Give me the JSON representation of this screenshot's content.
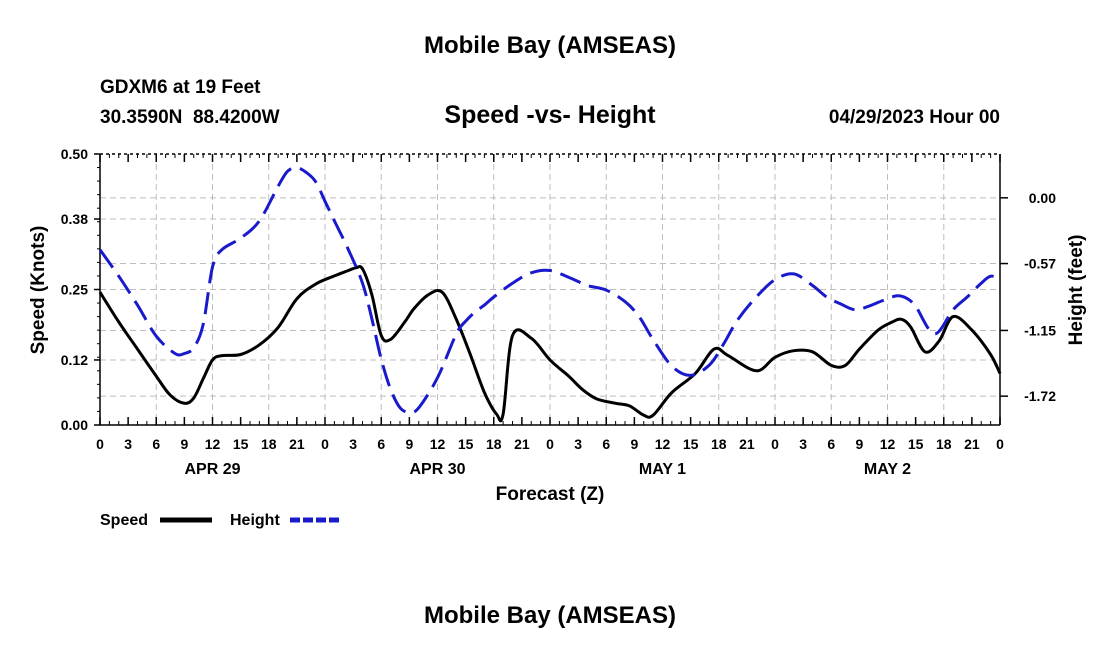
{
  "header": {
    "title_top": "Mobile Bay (AMSEAS)",
    "station_line": "GDXM6 at 19 Feet",
    "coords_line": "30.3590N  88.4200W",
    "chart_title": "Speed -vs- Height",
    "date_line": "04/29/2023 Hour 00",
    "title_bottom": "Mobile Bay (AMSEAS)"
  },
  "colors": {
    "speed": "#000000",
    "height": "#1a1acd",
    "grid": "#bdbdbd"
  },
  "chart_data": {
    "type": "line",
    "title": "Speed -vs- Height",
    "xlabel": "Forecast (Z)",
    "ylabel": "Speed (Knots)",
    "y2label": "Height (feet)",
    "x_unit": "hours from 04/29/2023 00Z",
    "xlim": [
      0,
      96
    ],
    "ylim": [
      0,
      0.5
    ],
    "y2lim": [
      -1.97,
      0.38
    ],
    "grid": true,
    "legend_position": "bottom-left",
    "x_tick_values": [
      0,
      3,
      6,
      9,
      12,
      15,
      18,
      21,
      24,
      27,
      30,
      33,
      36,
      39,
      42,
      45,
      48,
      51,
      54,
      57,
      60,
      63,
      66,
      69,
      72,
      75,
      78,
      81,
      84,
      87,
      90,
      93,
      96
    ],
    "x_tick_labels": [
      "0",
      "3",
      "6",
      "9",
      "12",
      "15",
      "18",
      "21",
      "0",
      "3",
      "6",
      "9",
      "12",
      "15",
      "18",
      "21",
      "0",
      "3",
      "6",
      "9",
      "12",
      "15",
      "18",
      "21",
      "0",
      "3",
      "6",
      "9",
      "12",
      "15",
      "18",
      "21",
      "0"
    ],
    "y_ticks": [
      "0.00",
      "0.12",
      "0.25",
      "0.38",
      "0.50"
    ],
    "y2_ticks": [
      "0.00",
      "-0.57",
      "-1.15",
      "-1.72"
    ],
    "date_labels": [
      {
        "label": "APR 29",
        "hour": 12
      },
      {
        "label": "APR 30",
        "hour": 36
      },
      {
        "label": "MAY 1",
        "hour": 60
      },
      {
        "label": "MAY 2",
        "hour": 84
      }
    ],
    "series": [
      {
        "name": "Speed",
        "axis": "left",
        "style": "solid",
        "x": [
          0,
          2,
          4,
          6,
          7.5,
          9,
          10,
          11,
          12,
          13,
          15,
          17,
          19,
          21,
          23,
          25,
          26.5,
          27.3,
          28,
          29,
          30,
          31,
          32.5,
          33.5,
          35,
          36.5,
          38,
          39.5,
          41,
          42.3,
          43,
          44,
          46,
          48,
          50,
          51.5,
          53,
          55,
          56.5,
          58,
          59,
          61,
          63.5,
          65.5,
          67,
          70,
          72,
          74,
          76,
          78,
          79.5,
          81,
          83,
          84.5,
          85.5,
          86.5,
          88,
          89.5,
          91,
          93,
          95,
          96
        ],
        "values": [
          0.245,
          0.19,
          0.14,
          0.09,
          0.055,
          0.04,
          0.05,
          0.085,
          0.12,
          0.128,
          0.13,
          0.148,
          0.18,
          0.233,
          0.26,
          0.275,
          0.285,
          0.29,
          0.288,
          0.24,
          0.165,
          0.158,
          0.19,
          0.215,
          0.24,
          0.245,
          0.195,
          0.13,
          0.06,
          0.02,
          0.02,
          0.165,
          0.16,
          0.12,
          0.09,
          0.065,
          0.048,
          0.04,
          0.035,
          0.018,
          0.018,
          0.06,
          0.095,
          0.14,
          0.128,
          0.1,
          0.125,
          0.137,
          0.135,
          0.11,
          0.11,
          0.14,
          0.175,
          0.19,
          0.195,
          0.18,
          0.135,
          0.155,
          0.2,
          0.175,
          0.13,
          0.095
        ]
      },
      {
        "name": "Height",
        "axis": "right",
        "style": "dashed",
        "x": [
          0,
          2,
          4,
          6,
          8,
          9,
          10,
          11,
          12,
          13,
          15,
          17,
          19,
          20,
          21,
          22,
          23,
          24,
          25,
          26.5,
          28,
          29,
          30,
          31,
          32,
          33,
          34,
          36,
          38,
          39,
          40,
          41,
          42,
          44,
          46,
          48,
          50,
          52,
          54,
          56,
          57.5,
          59,
          61,
          63,
          65,
          66.5,
          68,
          70,
          72,
          74,
          76,
          77.5,
          79,
          80.5,
          82,
          83.5,
          85,
          86,
          87,
          89,
          91,
          92.5,
          94,
          95,
          96
        ],
        "values": [
          -0.45,
          -0.68,
          -0.93,
          -1.2,
          -1.35,
          -1.35,
          -1.3,
          -1.1,
          -0.6,
          -0.45,
          -0.35,
          -0.2,
          0.1,
          0.23,
          0.26,
          0.22,
          0.14,
          -0.03,
          -0.2,
          -0.45,
          -0.74,
          -1.05,
          -1.4,
          -1.66,
          -1.82,
          -1.86,
          -1.82,
          -1.56,
          -1.18,
          -1.07,
          -0.99,
          -0.93,
          -0.86,
          -0.74,
          -0.65,
          -0.63,
          -0.69,
          -0.76,
          -0.8,
          -0.9,
          -1.03,
          -1.23,
          -1.46,
          -1.54,
          -1.45,
          -1.27,
          -1.06,
          -0.86,
          -0.71,
          -0.66,
          -0.76,
          -0.86,
          -0.92,
          -0.97,
          -0.94,
          -0.89,
          -0.85,
          -0.87,
          -0.94,
          -1.18,
          -0.97,
          -0.86,
          -0.74,
          -0.68,
          -0.7
        ]
      }
    ],
    "legend": [
      {
        "label": "Speed",
        "series": "Speed"
      },
      {
        "label": "Height",
        "series": "Height"
      }
    ]
  }
}
